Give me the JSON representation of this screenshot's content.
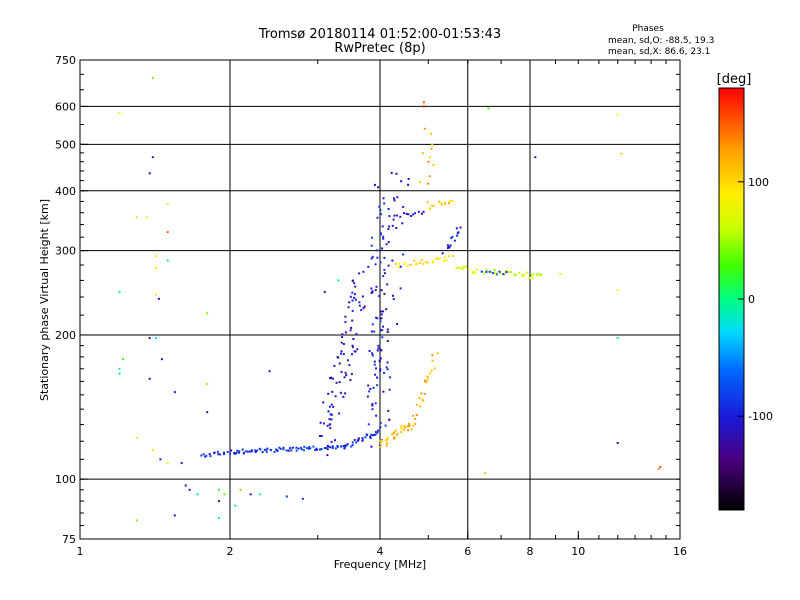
{
  "chart_data": {
    "type": "scatter",
    "title": "Tromsø 20180114 01:52:00-01:53:43",
    "subtitle": "RwPretec (8p)",
    "xlabel": "Frequency [MHz]",
    "ylabel": "Stationary phase Virtual Height [km]",
    "x_scale": "log2",
    "y_scale": "log",
    "xlim": [
      1,
      16
    ],
    "ylim": [
      75,
      750
    ],
    "x_ticks": [
      1,
      2,
      4,
      6,
      8,
      10,
      16
    ],
    "x_tick_labels": [
      "1",
      "2",
      "4",
      "6",
      "8",
      "10",
      "16"
    ],
    "x_gridlines": [
      2,
      4,
      6,
      8
    ],
    "y_ticks": [
      75,
      100,
      200,
      300,
      400,
      500,
      600,
      750
    ],
    "y_tick_labels": [
      "75",
      "100",
      "200",
      "300",
      "400",
      "500",
      "600",
      "750"
    ],
    "y_gridlines": [
      100,
      200,
      300,
      400,
      500,
      600
    ],
    "grid": true,
    "phase_stats": {
      "heading": "Phases",
      "line_o": "mean, sd,O: -88.5, 19.3",
      "line_x": "mean, sd,X: 86.6, 23.1"
    },
    "colorbar": {
      "label": "[deg]",
      "range": [
        -180,
        180
      ],
      "ticks": [
        100,
        0,
        -100
      ],
      "tick_labels": [
        "100",
        "0",
        "-100"
      ]
    },
    "traces": [
      {
        "from": [
          1.75,
          112
        ],
        "to": [
          2.05,
          114
        ],
        "phase": -95,
        "n": 18,
        "spread": 0.02
      },
      {
        "from": [
          2.05,
          114
        ],
        "to": [
          3.4,
          117
        ],
        "phase": -85,
        "n": 70,
        "spread": 0.02
      },
      {
        "from": [
          3.4,
          117
        ],
        "to": [
          3.95,
          125
        ],
        "phase": -95,
        "n": 25,
        "spread": 0.025
      },
      {
        "from": [
          3.9,
          120
        ],
        "to": [
          3.95,
          390
        ],
        "phase": -100,
        "n": 70,
        "spread": 0.12
      },
      {
        "from": [
          3.1,
          120
        ],
        "to": [
          3.7,
          260
        ],
        "phase": -110,
        "n": 90,
        "spread": 0.14
      },
      {
        "from": [
          4.0,
          130
        ],
        "to": [
          4.4,
          440
        ],
        "phase": -105,
        "n": 60,
        "spread": 0.14
      },
      {
        "from": [
          4.0,
          118
        ],
        "to": [
          4.6,
          130
        ],
        "phase": 115,
        "n": 30,
        "spread": 0.04
      },
      {
        "from": [
          4.6,
          128
        ],
        "to": [
          5.15,
          180
        ],
        "phase": 120,
        "n": 25,
        "spread": 0.05
      },
      {
        "from": [
          4.9,
          400
        ],
        "to": [
          5.1,
          520
        ],
        "phase": 120,
        "n": 12,
        "spread": 0.12
      },
      {
        "from": [
          5.0,
          370
        ],
        "to": [
          5.6,
          385
        ],
        "phase": 110,
        "n": 12,
        "spread": 0.03
      },
      {
        "from": [
          4.3,
          280
        ],
        "to": [
          5.6,
          290
        ],
        "phase": 95,
        "n": 25,
        "spread": 0.03
      },
      {
        "from": [
          5.4,
          300
        ],
        "to": [
          5.8,
          330
        ],
        "phase": -100,
        "n": 14,
        "spread": 0.04
      },
      {
        "from": [
          4.3,
          355
        ],
        "to": [
          4.9,
          360
        ],
        "phase": -100,
        "n": 12,
        "spread": 0.02
      },
      {
        "from": [
          5.7,
          275
        ],
        "to": [
          8.5,
          265
        ],
        "phase": 65,
        "n": 40,
        "spread": 0.03
      },
      {
        "from": [
          6.4,
          272
        ],
        "to": [
          7.2,
          268
        ],
        "phase": -85,
        "n": 8,
        "spread": 0.02
      }
    ],
    "points": [
      {
        "x": 1.2,
        "y": 582,
        "phase": 90
      },
      {
        "x": 1.4,
        "y": 688,
        "phase": 40
      },
      {
        "x": 1.4,
        "y": 470,
        "phase": -110
      },
      {
        "x": 1.38,
        "y": 435,
        "phase": -110
      },
      {
        "x": 1.3,
        "y": 352,
        "phase": 95
      },
      {
        "x": 1.36,
        "y": 352,
        "phase": 75
      },
      {
        "x": 1.5,
        "y": 375,
        "phase": 95
      },
      {
        "x": 1.5,
        "y": 328,
        "phase": 150
      },
      {
        "x": 1.42,
        "y": 292,
        "phase": 80
      },
      {
        "x": 1.42,
        "y": 276,
        "phase": 95
      },
      {
        "x": 1.5,
        "y": 286,
        "phase": -5
      },
      {
        "x": 1.2,
        "y": 246,
        "phase": 0
      },
      {
        "x": 1.42,
        "y": 243,
        "phase": 90
      },
      {
        "x": 1.44,
        "y": 238,
        "phase": -110
      },
      {
        "x": 1.38,
        "y": 197,
        "phase": -110
      },
      {
        "x": 1.42,
        "y": 197,
        "phase": -20
      },
      {
        "x": 1.8,
        "y": 222,
        "phase": 40
      },
      {
        "x": 1.22,
        "y": 178,
        "phase": 30
      },
      {
        "x": 1.2,
        "y": 170,
        "phase": -20
      },
      {
        "x": 1.2,
        "y": 166,
        "phase": 0
      },
      {
        "x": 1.46,
        "y": 178,
        "phase": -110
      },
      {
        "x": 1.38,
        "y": 162,
        "phase": -110
      },
      {
        "x": 1.55,
        "y": 152,
        "phase": -110
      },
      {
        "x": 1.8,
        "y": 158,
        "phase": 110
      },
      {
        "x": 1.3,
        "y": 122,
        "phase": 90
      },
      {
        "x": 1.4,
        "y": 115,
        "phase": 100
      },
      {
        "x": 1.45,
        "y": 110,
        "phase": -105
      },
      {
        "x": 1.6,
        "y": 108,
        "phase": -110
      },
      {
        "x": 1.5,
        "y": 108,
        "phase": 90
      },
      {
        "x": 1.63,
        "y": 97,
        "phase": -110
      },
      {
        "x": 1.66,
        "y": 95,
        "phase": -110
      },
      {
        "x": 1.72,
        "y": 93,
        "phase": -20
      },
      {
        "x": 1.9,
        "y": 95,
        "phase": 20
      },
      {
        "x": 1.95,
        "y": 93,
        "phase": 40
      },
      {
        "x": 2.1,
        "y": 95,
        "phase": 120
      },
      {
        "x": 2.2,
        "y": 93,
        "phase": -100
      },
      {
        "x": 2.3,
        "y": 93,
        "phase": 0
      },
      {
        "x": 2.6,
        "y": 92,
        "phase": -90
      },
      {
        "x": 2.8,
        "y": 91,
        "phase": -90
      },
      {
        "x": 1.9,
        "y": 90,
        "phase": -110
      },
      {
        "x": 2.05,
        "y": 88,
        "phase": -20
      },
      {
        "x": 1.55,
        "y": 84,
        "phase": -110
      },
      {
        "x": 1.9,
        "y": 83,
        "phase": -10
      },
      {
        "x": 1.3,
        "y": 82,
        "phase": 40
      },
      {
        "x": 1.8,
        "y": 138,
        "phase": -110
      },
      {
        "x": 2.4,
        "y": 168,
        "phase": -110
      },
      {
        "x": 3.3,
        "y": 260,
        "phase": -10
      },
      {
        "x": 3.1,
        "y": 246,
        "phase": -110
      },
      {
        "x": 4.9,
        "y": 612,
        "phase": 150
      },
      {
        "x": 4.9,
        "y": 600,
        "phase": 170
      },
      {
        "x": 6.6,
        "y": 594,
        "phase": 30
      },
      {
        "x": 8.2,
        "y": 470,
        "phase": -110
      },
      {
        "x": 12.0,
        "y": 576,
        "phase": 90
      },
      {
        "x": 12.2,
        "y": 478,
        "phase": 110
      },
      {
        "x": 12.0,
        "y": 248,
        "phase": 90
      },
      {
        "x": 12.0,
        "y": 197,
        "phase": -15
      },
      {
        "x": 12.0,
        "y": 119,
        "phase": -110
      },
      {
        "x": 14.6,
        "y": 106,
        "phase": 155
      },
      {
        "x": 14.5,
        "y": 105,
        "phase": 130
      },
      {
        "x": 6.5,
        "y": 103,
        "phase": 110
      },
      {
        "x": 9.2,
        "y": 268,
        "phase": 90
      },
      {
        "x": 7.9,
        "y": 270,
        "phase": 60
      }
    ]
  }
}
